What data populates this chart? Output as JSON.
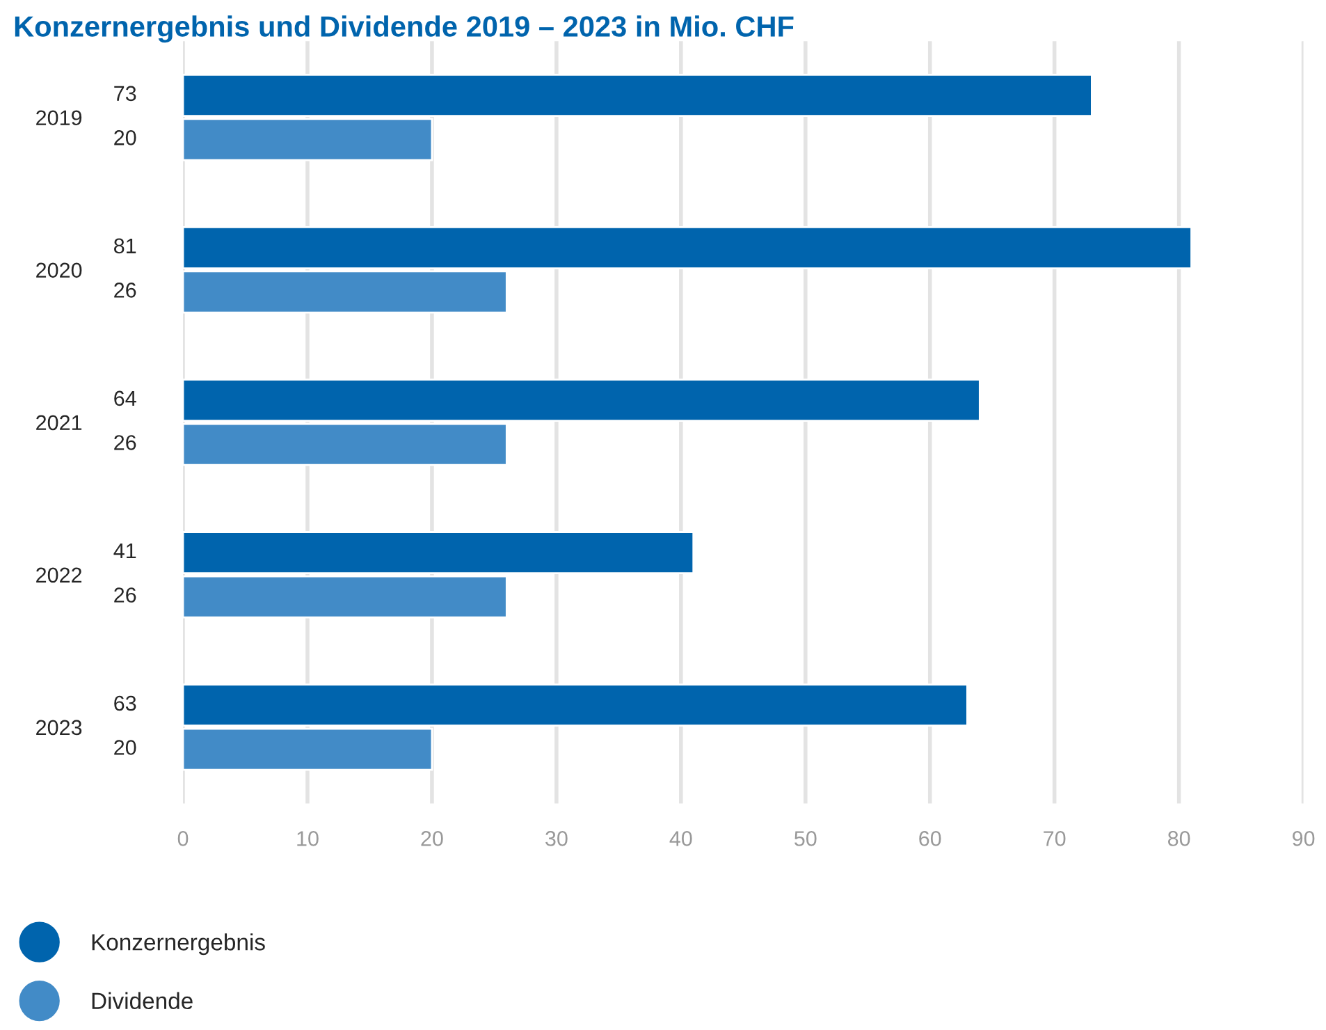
{
  "chart_data": {
    "type": "bar",
    "orientation": "horizontal",
    "title": "Konzernergebnis und Dividende 2019 – 2023 in Mio. CHF",
    "categories": [
      "2019",
      "2020",
      "2021",
      "2022",
      "2023"
    ],
    "series": [
      {
        "name": "Konzernergebnis",
        "color": "#0064ad",
        "values": [
          73,
          81,
          64,
          41,
          63
        ]
      },
      {
        "name": "Dividende",
        "color": "#428bc7",
        "values": [
          20,
          26,
          26,
          26,
          20
        ]
      }
    ],
    "xlim": [
      0,
      90
    ],
    "xticks": [
      0,
      10,
      20,
      30,
      40,
      50,
      60,
      70,
      80,
      90
    ],
    "grid": "x",
    "legend": "bottom",
    "data_labels": true
  }
}
